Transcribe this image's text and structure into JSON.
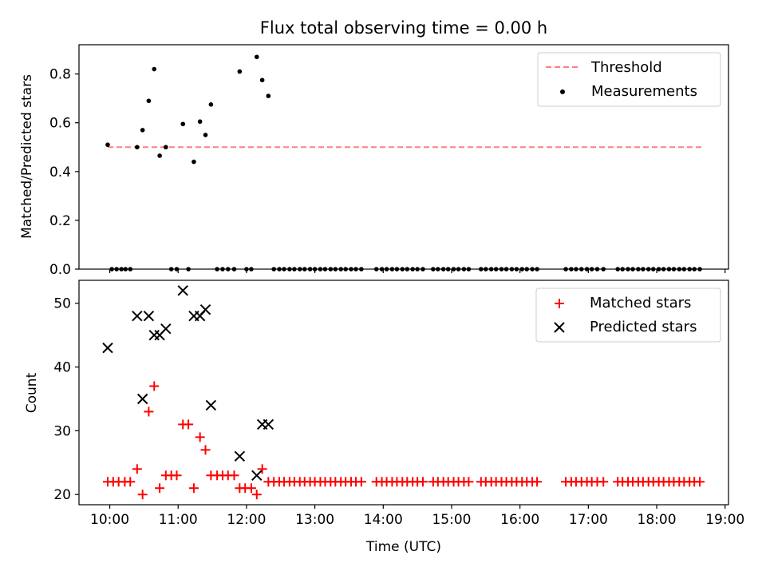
{
  "chart_data": [
    {
      "type": "scatter",
      "panel": "top",
      "title": "Flux total observing time = 0.00 h",
      "xlabel": "",
      "ylabel": "Matched/Predicted stars",
      "xlim": [
        9.55,
        19.05
      ],
      "ylim": [
        0,
        0.92
      ],
      "yticks": [
        0.0,
        0.2,
        0.4,
        0.6,
        0.8
      ],
      "ytick_labels": [
        "0.0",
        "0.2",
        "0.4",
        "0.6",
        "0.8"
      ],
      "grid": false,
      "legend_position": "top-right",
      "threshold": {
        "name": "Threshold",
        "value": 0.5,
        "x_range": [
          9.97,
          18.67
        ],
        "color": "#ff7f7f",
        "style": "dashed"
      },
      "series": [
        {
          "name": "Measurements",
          "color": "#000000",
          "marker": "dot",
          "points": [
            [
              9.97,
              0.51
            ],
            [
              10.4,
              0.5
            ],
            [
              10.48,
              0.57
            ],
            [
              10.57,
              0.69
            ],
            [
              10.65,
              0.82
            ],
            [
              10.73,
              0.465
            ],
            [
              10.82,
              0.5
            ],
            [
              11.07,
              0.595
            ],
            [
              11.23,
              0.44
            ],
            [
              11.32,
              0.605
            ],
            [
              11.4,
              0.55
            ],
            [
              11.48,
              0.675
            ],
            [
              11.9,
              0.81
            ],
            [
              12.15,
              0.87
            ],
            [
              12.23,
              0.775
            ],
            [
              12.32,
              0.71
            ],
            [
              10.03,
              0
            ],
            [
              10.1,
              0
            ],
            [
              10.17,
              0
            ],
            [
              10.23,
              0
            ],
            [
              10.3,
              0
            ],
            [
              10.9,
              0
            ],
            [
              10.98,
              0
            ],
            [
              11.15,
              0
            ],
            [
              11.57,
              0
            ],
            [
              11.65,
              0
            ],
            [
              11.73,
              0
            ],
            [
              11.82,
              0
            ],
            [
              12.0,
              0
            ],
            [
              12.07,
              0
            ],
            [
              12.4,
              0
            ],
            [
              12.48,
              0
            ],
            [
              12.55,
              0
            ],
            [
              12.63,
              0
            ],
            [
              12.7,
              0
            ],
            [
              12.78,
              0
            ],
            [
              12.85,
              0
            ],
            [
              12.93,
              0
            ],
            [
              13.0,
              0
            ],
            [
              13.08,
              0
            ],
            [
              13.15,
              0
            ],
            [
              13.23,
              0
            ],
            [
              13.3,
              0
            ],
            [
              13.38,
              0
            ],
            [
              13.45,
              0
            ],
            [
              13.53,
              0
            ],
            [
              13.6,
              0
            ],
            [
              13.68,
              0
            ],
            [
              13.9,
              0
            ],
            [
              13.98,
              0
            ],
            [
              14.05,
              0
            ],
            [
              14.13,
              0
            ],
            [
              14.2,
              0
            ],
            [
              14.28,
              0
            ],
            [
              14.35,
              0
            ],
            [
              14.43,
              0
            ],
            [
              14.5,
              0
            ],
            [
              14.58,
              0
            ],
            [
              14.73,
              0
            ],
            [
              14.8,
              0
            ],
            [
              14.88,
              0
            ],
            [
              14.95,
              0
            ],
            [
              15.03,
              0
            ],
            [
              15.1,
              0
            ],
            [
              15.18,
              0
            ],
            [
              15.25,
              0
            ],
            [
              15.43,
              0
            ],
            [
              15.5,
              0
            ],
            [
              15.58,
              0
            ],
            [
              15.65,
              0
            ],
            [
              15.73,
              0
            ],
            [
              15.8,
              0
            ],
            [
              15.88,
              0
            ],
            [
              15.95,
              0
            ],
            [
              16.03,
              0
            ],
            [
              16.1,
              0
            ],
            [
              16.18,
              0
            ],
            [
              16.25,
              0
            ],
            [
              16.67,
              0
            ],
            [
              16.75,
              0
            ],
            [
              16.82,
              0
            ],
            [
              16.9,
              0
            ],
            [
              16.98,
              0
            ],
            [
              17.05,
              0
            ],
            [
              17.13,
              0
            ],
            [
              17.22,
              0
            ],
            [
              17.43,
              0
            ],
            [
              17.5,
              0
            ],
            [
              17.58,
              0
            ],
            [
              17.65,
              0
            ],
            [
              17.73,
              0
            ],
            [
              17.8,
              0
            ],
            [
              17.88,
              0
            ],
            [
              17.95,
              0
            ],
            [
              18.03,
              0
            ],
            [
              18.1,
              0
            ],
            [
              18.18,
              0
            ],
            [
              18.25,
              0
            ],
            [
              18.33,
              0
            ],
            [
              18.4,
              0
            ],
            [
              18.48,
              0
            ],
            [
              18.55,
              0
            ],
            [
              18.63,
              0
            ]
          ]
        }
      ]
    },
    {
      "type": "scatter",
      "panel": "bottom",
      "title": "",
      "xlabel": "Time (UTC)",
      "ylabel": "Count",
      "xlim": [
        9.55,
        19.05
      ],
      "ylim": [
        18.4,
        53.6
      ],
      "xticks": [
        10,
        11,
        12,
        13,
        14,
        15,
        16,
        17,
        18,
        19
      ],
      "xtick_labels": [
        "10:00",
        "11:00",
        "12:00",
        "13:00",
        "14:00",
        "15:00",
        "16:00",
        "17:00",
        "18:00",
        "19:00"
      ],
      "yticks": [
        20,
        30,
        40,
        50
      ],
      "ytick_labels": [
        "20",
        "30",
        "40",
        "50"
      ],
      "grid": false,
      "legend_position": "top-right",
      "series": [
        {
          "name": "Matched stars",
          "color": "#ff0000",
          "marker": "plus",
          "points": [
            [
              9.97,
              22
            ],
            [
              10.05,
              22
            ],
            [
              10.13,
              22
            ],
            [
              10.22,
              22
            ],
            [
              10.3,
              22
            ],
            [
              10.4,
              24
            ],
            [
              10.48,
              20
            ],
            [
              10.57,
              33
            ],
            [
              10.65,
              37
            ],
            [
              10.73,
              21
            ],
            [
              10.82,
              23
            ],
            [
              10.9,
              23
            ],
            [
              10.98,
              23
            ],
            [
              11.07,
              31
            ],
            [
              11.15,
              31
            ],
            [
              11.23,
              21
            ],
            [
              11.32,
              29
            ],
            [
              11.4,
              27
            ],
            [
              11.48,
              23
            ],
            [
              11.57,
              23
            ],
            [
              11.65,
              23
            ],
            [
              11.73,
              23
            ],
            [
              11.82,
              23
            ],
            [
              11.9,
              21
            ],
            [
              11.98,
              21
            ],
            [
              12.07,
              21
            ],
            [
              12.15,
              20
            ],
            [
              12.23,
              24
            ],
            [
              12.32,
              22
            ],
            [
              12.4,
              22
            ],
            [
              12.48,
              22
            ],
            [
              12.55,
              22
            ],
            [
              12.63,
              22
            ],
            [
              12.7,
              22
            ],
            [
              12.78,
              22
            ],
            [
              12.85,
              22
            ],
            [
              12.93,
              22
            ],
            [
              13.0,
              22
            ],
            [
              13.08,
              22
            ],
            [
              13.15,
              22
            ],
            [
              13.23,
              22
            ],
            [
              13.3,
              22
            ],
            [
              13.38,
              22
            ],
            [
              13.45,
              22
            ],
            [
              13.53,
              22
            ],
            [
              13.6,
              22
            ],
            [
              13.68,
              22
            ],
            [
              13.9,
              22
            ],
            [
              13.98,
              22
            ],
            [
              14.05,
              22
            ],
            [
              14.13,
              22
            ],
            [
              14.2,
              22
            ],
            [
              14.28,
              22
            ],
            [
              14.35,
              22
            ],
            [
              14.43,
              22
            ],
            [
              14.5,
              22
            ],
            [
              14.58,
              22
            ],
            [
              14.73,
              22
            ],
            [
              14.8,
              22
            ],
            [
              14.88,
              22
            ],
            [
              14.95,
              22
            ],
            [
              15.03,
              22
            ],
            [
              15.1,
              22
            ],
            [
              15.18,
              22
            ],
            [
              15.25,
              22
            ],
            [
              15.43,
              22
            ],
            [
              15.5,
              22
            ],
            [
              15.58,
              22
            ],
            [
              15.65,
              22
            ],
            [
              15.73,
              22
            ],
            [
              15.8,
              22
            ],
            [
              15.88,
              22
            ],
            [
              15.95,
              22
            ],
            [
              16.03,
              22
            ],
            [
              16.1,
              22
            ],
            [
              16.18,
              22
            ],
            [
              16.25,
              22
            ],
            [
              16.67,
              22
            ],
            [
              16.75,
              22
            ],
            [
              16.82,
              22
            ],
            [
              16.9,
              22
            ],
            [
              16.98,
              22
            ],
            [
              17.05,
              22
            ],
            [
              17.13,
              22
            ],
            [
              17.22,
              22
            ],
            [
              17.43,
              22
            ],
            [
              17.5,
              22
            ],
            [
              17.58,
              22
            ],
            [
              17.65,
              22
            ],
            [
              17.73,
              22
            ],
            [
              17.8,
              22
            ],
            [
              17.88,
              22
            ],
            [
              17.95,
              22
            ],
            [
              18.03,
              22
            ],
            [
              18.1,
              22
            ],
            [
              18.18,
              22
            ],
            [
              18.25,
              22
            ],
            [
              18.33,
              22
            ],
            [
              18.4,
              22
            ],
            [
              18.48,
              22
            ],
            [
              18.55,
              22
            ],
            [
              18.63,
              22
            ]
          ]
        },
        {
          "name": "Predicted stars",
          "color": "#000000",
          "marker": "x",
          "points": [
            [
              9.97,
              43
            ],
            [
              10.4,
              48
            ],
            [
              10.48,
              35
            ],
            [
              10.57,
              48
            ],
            [
              10.65,
              45
            ],
            [
              10.73,
              45
            ],
            [
              10.82,
              46
            ],
            [
              11.07,
              52
            ],
            [
              11.23,
              48
            ],
            [
              11.32,
              48
            ],
            [
              11.4,
              49
            ],
            [
              11.48,
              34
            ],
            [
              11.9,
              26
            ],
            [
              12.15,
              23
            ],
            [
              12.23,
              31
            ],
            [
              12.32,
              31
            ]
          ]
        }
      ]
    }
  ]
}
